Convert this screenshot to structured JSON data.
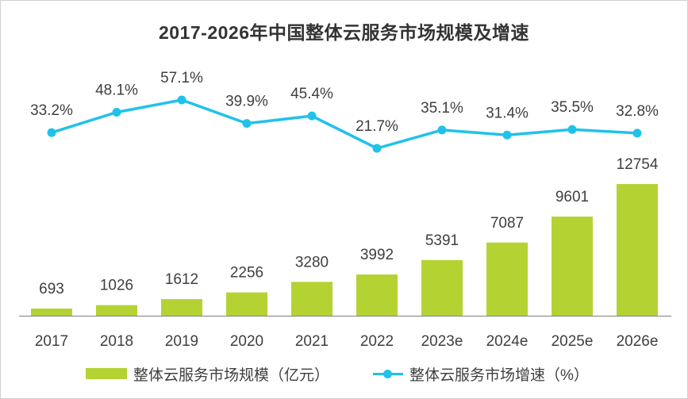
{
  "colors": {
    "bar": "#b4d333",
    "line": "#20c2ea",
    "axis": "#7f7f7f"
  },
  "chart_data": {
    "type": "bar+line",
    "title": "2017-2026年中国整体云服务市场规模及增速",
    "categories": [
      "2017",
      "2018",
      "2019",
      "2020",
      "2021",
      "2022",
      "2023e",
      "2024e",
      "2025e",
      "2026e"
    ],
    "series": [
      {
        "name": "整体云服务市场规模（亿元）",
        "type": "bar",
        "values": [
          693,
          1026,
          1612,
          2256,
          3280,
          3992,
          5391,
          7087,
          9601,
          12754
        ],
        "labels": [
          "693",
          "1026",
          "1612",
          "2256",
          "3280",
          "3992",
          "5391",
          "7087",
          "9601",
          "12754"
        ]
      },
      {
        "name": "整体云服务市场增速（%）",
        "type": "line",
        "values": [
          33.2,
          48.1,
          57.1,
          39.9,
          45.4,
          21.7,
          35.1,
          31.4,
          35.5,
          32.8
        ],
        "labels": [
          "33.2%",
          "48.1%",
          "57.1%",
          "39.9%",
          "45.4%",
          "21.7%",
          "35.1%",
          "31.4%",
          "35.5%",
          "32.8%"
        ]
      }
    ],
    "bar_axis_range": [
      0,
      12754
    ],
    "line_axis_range": [
      21.7,
      57.1
    ],
    "grid": false,
    "legend_position": "bottom"
  }
}
